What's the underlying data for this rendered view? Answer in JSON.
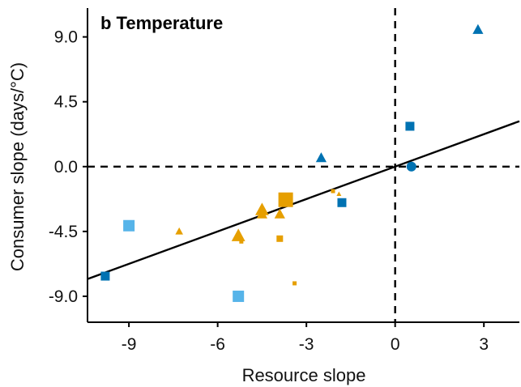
{
  "chart_data": {
    "type": "scatter",
    "title": "b Temperature",
    "xlabel": "Resource slope",
    "ylabel": "Consumer slope (days/°C)",
    "xlim": [
      -10.4,
      4.2
    ],
    "ylim": [
      -10.8,
      11.0
    ],
    "xticks": [
      -9,
      -6,
      -3,
      0,
      3
    ],
    "xtick_labels": [
      "-9",
      "-6",
      "-3",
      "0",
      "3"
    ],
    "yticks": [
      9.0,
      4.5,
      0.0,
      -4.5,
      -9.0
    ],
    "ytick_labels": [
      "9.0",
      "4.5",
      "0.0",
      "-4.5",
      "-9.0"
    ],
    "grid": false,
    "reference_lines": {
      "x": 0,
      "y": 0,
      "style": "dashed"
    },
    "fit_line": {
      "slope": 0.75,
      "intercept": 0.0
    },
    "colors": {
      "orange": "#E69F00",
      "dark_blue": "#0072B2",
      "light_blue": "#56B4E9",
      "line": "#000000"
    },
    "points": [
      {
        "x": 2.8,
        "y": 9.5,
        "shape": "triangle",
        "color": "dark_blue",
        "size": "medium"
      },
      {
        "x": 0.5,
        "y": 2.8,
        "shape": "square",
        "color": "dark_blue",
        "size": "medium"
      },
      {
        "x": 0.55,
        "y": 0.0,
        "shape": "circle",
        "color": "dark_blue",
        "size": "medium"
      },
      {
        "x": -2.5,
        "y": 0.6,
        "shape": "triangle",
        "color": "dark_blue",
        "size": "medium"
      },
      {
        "x": -1.8,
        "y": -2.5,
        "shape": "square",
        "color": "dark_blue",
        "size": "medium"
      },
      {
        "x": -9.8,
        "y": -7.6,
        "shape": "square",
        "color": "dark_blue",
        "size": "medium"
      },
      {
        "x": -9.0,
        "y": -4.1,
        "shape": "square",
        "color": "light_blue",
        "size": "large"
      },
      {
        "x": -5.3,
        "y": -9.0,
        "shape": "square",
        "color": "light_blue",
        "size": "large"
      },
      {
        "x": -3.7,
        "y": -2.3,
        "shape": "square",
        "color": "orange",
        "size": "xlarge"
      },
      {
        "x": -4.5,
        "y": -3.0,
        "shape": "triangle",
        "color": "orange",
        "size": "large"
      },
      {
        "x": -4.5,
        "y": -3.3,
        "shape": "triangle",
        "color": "orange",
        "size": "medium"
      },
      {
        "x": -3.9,
        "y": -3.3,
        "shape": "triangle",
        "color": "orange",
        "size": "medium"
      },
      {
        "x": -5.3,
        "y": -4.8,
        "shape": "triangle",
        "color": "orange",
        "size": "large"
      },
      {
        "x": -5.2,
        "y": -5.2,
        "shape": "square",
        "color": "orange",
        "size": "tiny"
      },
      {
        "x": -7.3,
        "y": -4.5,
        "shape": "triangle",
        "color": "orange",
        "size": "small"
      },
      {
        "x": -3.9,
        "y": -5.0,
        "shape": "square",
        "color": "orange",
        "size": "small"
      },
      {
        "x": -2.1,
        "y": -1.7,
        "shape": "square",
        "color": "orange",
        "size": "tiny"
      },
      {
        "x": -1.9,
        "y": -1.9,
        "shape": "triangle",
        "color": "orange",
        "size": "tiny"
      },
      {
        "x": -3.4,
        "y": -8.1,
        "shape": "square",
        "color": "orange",
        "size": "tiny"
      }
    ]
  }
}
